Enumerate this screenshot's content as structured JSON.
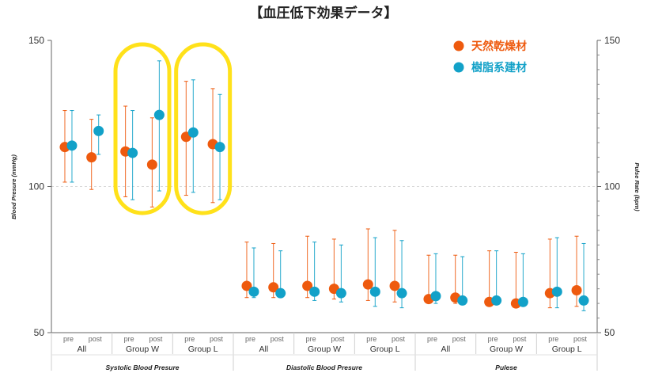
{
  "chart_data": {
    "type": "scatter",
    "title": "【血圧低下効果データ】",
    "ylabel": "Blood Presure (mmHg)",
    "y2label": "Pulse Rate (bpm)",
    "ylim": [
      50,
      150
    ],
    "yticks": [
      50,
      100,
      150
    ],
    "y2ticks": [
      50,
      100,
      150
    ],
    "grid": "dashed line at 100",
    "legend": "top-right",
    "sections": [
      "Systolic Blood Presure",
      "Diastolic Blood Presure",
      "Pulese"
    ],
    "groups": [
      "All",
      "Group W",
      "Group L"
    ],
    "phases": [
      "pre",
      "post"
    ],
    "series": [
      {
        "name": "天然乾燥材",
        "color": "#ee5a0e",
        "points": [
          {
            "s": 0,
            "g": 0,
            "p": 0,
            "y": 113.5,
            "lo": 101.5,
            "hi": 126
          },
          {
            "s": 0,
            "g": 0,
            "p": 1,
            "y": 110,
            "lo": 99,
            "hi": 123
          },
          {
            "s": 0,
            "g": 1,
            "p": 0,
            "y": 112,
            "lo": 96.5,
            "hi": 127.5
          },
          {
            "s": 0,
            "g": 1,
            "p": 1,
            "y": 107.5,
            "lo": 93,
            "hi": 123.5
          },
          {
            "s": 0,
            "g": 2,
            "p": 0,
            "y": 117,
            "lo": 97,
            "hi": 136
          },
          {
            "s": 0,
            "g": 2,
            "p": 1,
            "y": 114.5,
            "lo": 94.5,
            "hi": 133.5
          },
          {
            "s": 1,
            "g": 0,
            "p": 0,
            "y": 66,
            "lo": 62,
            "hi": 81
          },
          {
            "s": 1,
            "g": 0,
            "p": 1,
            "y": 65.5,
            "lo": 62,
            "hi": 80.5
          },
          {
            "s": 1,
            "g": 1,
            "p": 0,
            "y": 66,
            "lo": 62,
            "hi": 83
          },
          {
            "s": 1,
            "g": 1,
            "p": 1,
            "y": 65,
            "lo": 61.5,
            "hi": 82
          },
          {
            "s": 1,
            "g": 2,
            "p": 0,
            "y": 66.5,
            "lo": 61,
            "hi": 85.5
          },
          {
            "s": 1,
            "g": 2,
            "p": 1,
            "y": 66,
            "lo": 60.5,
            "hi": 85
          },
          {
            "s": 2,
            "g": 0,
            "p": 0,
            "y": 61.5,
            "lo": 60,
            "hi": 76.5
          },
          {
            "s": 2,
            "g": 0,
            "p": 1,
            "y": 62,
            "lo": 60,
            "hi": 76.5
          },
          {
            "s": 2,
            "g": 1,
            "p": 0,
            "y": 60.5,
            "lo": 59.5,
            "hi": 78
          },
          {
            "s": 2,
            "g": 1,
            "p": 1,
            "y": 60,
            "lo": 59,
            "hi": 77.5
          },
          {
            "s": 2,
            "g": 2,
            "p": 0,
            "y": 63.5,
            "lo": 58.5,
            "hi": 82
          },
          {
            "s": 2,
            "g": 2,
            "p": 1,
            "y": 64.5,
            "lo": 59,
            "hi": 83
          }
        ]
      },
      {
        "name": "樹脂系建材",
        "color": "#12a1c8",
        "points": [
          {
            "s": 0,
            "g": 0,
            "p": 0,
            "y": 114,
            "lo": 101.5,
            "hi": 126
          },
          {
            "s": 0,
            "g": 0,
            "p": 1,
            "y": 119,
            "lo": 111,
            "hi": 124.5
          },
          {
            "s": 0,
            "g": 1,
            "p": 0,
            "y": 111.5,
            "lo": 95.5,
            "hi": 126
          },
          {
            "s": 0,
            "g": 1,
            "p": 1,
            "y": 124.5,
            "lo": 98.5,
            "hi": 143
          },
          {
            "s": 0,
            "g": 2,
            "p": 0,
            "y": 118.5,
            "lo": 98,
            "hi": 136.5
          },
          {
            "s": 0,
            "g": 2,
            "p": 1,
            "y": 113.5,
            "lo": 95.5,
            "hi": 131.5
          },
          {
            "s": 1,
            "g": 0,
            "p": 0,
            "y": 64,
            "lo": 62,
            "hi": 79
          },
          {
            "s": 1,
            "g": 0,
            "p": 1,
            "y": 63.5,
            "lo": 62,
            "hi": 78
          },
          {
            "s": 1,
            "g": 1,
            "p": 0,
            "y": 64,
            "lo": 61,
            "hi": 81
          },
          {
            "s": 1,
            "g": 1,
            "p": 1,
            "y": 63.5,
            "lo": 60.5,
            "hi": 80
          },
          {
            "s": 1,
            "g": 2,
            "p": 0,
            "y": 64,
            "lo": 59,
            "hi": 82.5
          },
          {
            "s": 1,
            "g": 2,
            "p": 1,
            "y": 63.5,
            "lo": 58.5,
            "hi": 81.5
          },
          {
            "s": 2,
            "g": 0,
            "p": 0,
            "y": 62.5,
            "lo": 60,
            "hi": 77
          },
          {
            "s": 2,
            "g": 0,
            "p": 1,
            "y": 61,
            "lo": 59.5,
            "hi": 76
          },
          {
            "s": 2,
            "g": 1,
            "p": 0,
            "y": 61,
            "lo": 60,
            "hi": 78
          },
          {
            "s": 2,
            "g": 1,
            "p": 1,
            "y": 60.5,
            "lo": 59.5,
            "hi": 77
          },
          {
            "s": 2,
            "g": 2,
            "p": 0,
            "y": 64,
            "lo": 58.5,
            "hi": 82.5
          },
          {
            "s": 2,
            "g": 2,
            "p": 1,
            "y": 61,
            "lo": 57.5,
            "hi": 80.5
          }
        ]
      }
    ],
    "highlight_groups": [
      {
        "s": 0,
        "g": 1
      },
      {
        "s": 0,
        "g": 2
      }
    ],
    "highlight_color": "#ffe11a"
  }
}
